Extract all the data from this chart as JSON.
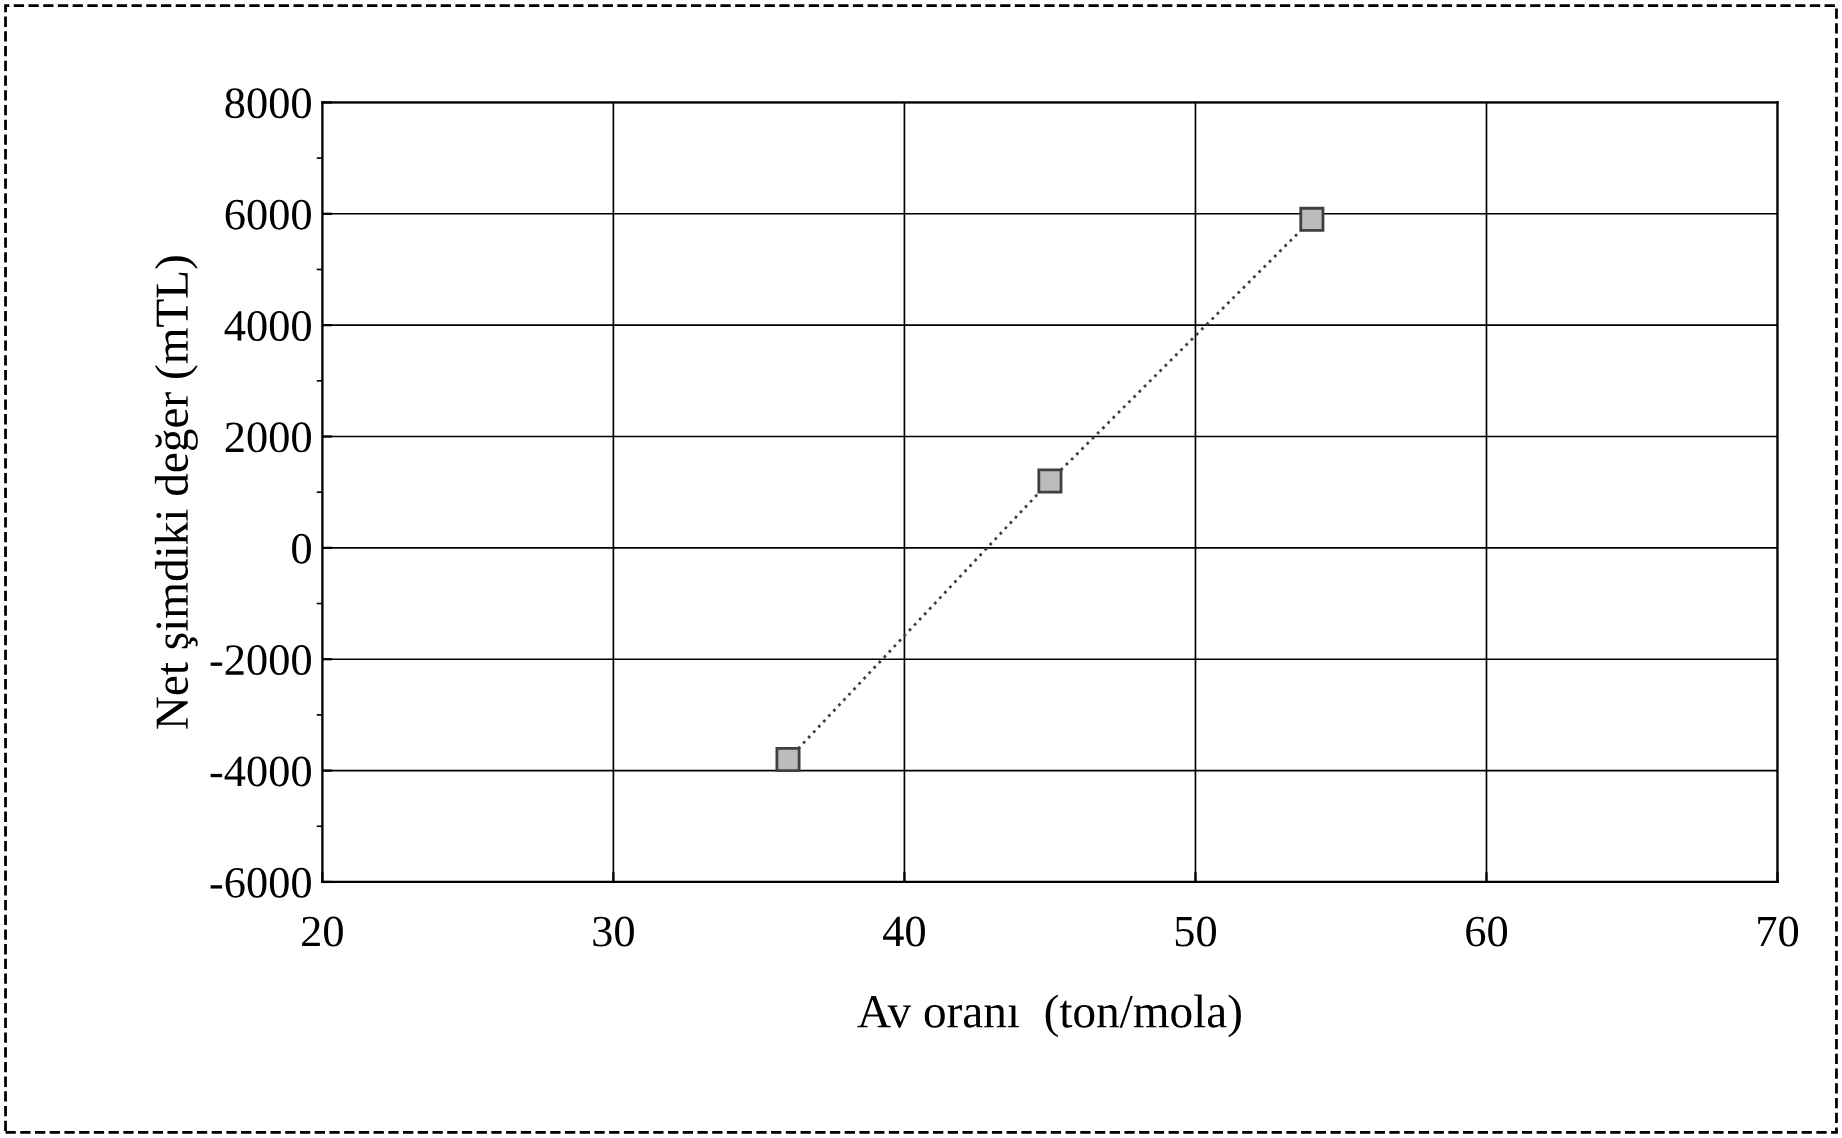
{
  "chart_data": {
    "type": "line",
    "xlabel": "Av oranı  (ton/mola)",
    "ylabel": "Net şimdiki değer (mTL)",
    "x": [
      36,
      45,
      54
    ],
    "series": [
      {
        "color": "#404040",
        "values": [
          -3800,
          1200,
          5900
        ]
      }
    ],
    "xlim": [
      20,
      70
    ],
    "xticks": [
      20,
      30,
      40,
      50,
      60,
      70
    ],
    "ylim": [
      -6000,
      8000
    ],
    "yticks": [
      -6000,
      -4000,
      -2000,
      0,
      2000,
      4000,
      6000,
      8000
    ],
    "grid": true,
    "marker": "square",
    "line_style": "dotted",
    "legend": false
  }
}
